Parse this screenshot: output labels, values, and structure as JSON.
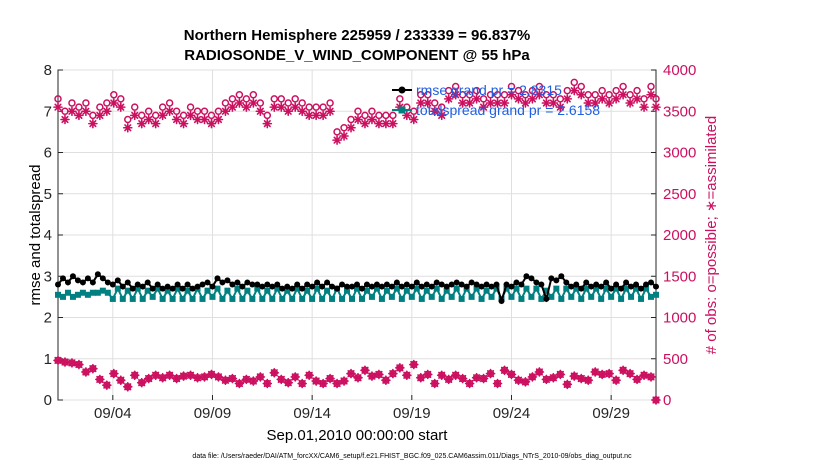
{
  "chart_data": {
    "type": "line",
    "title_line1": "Northern Hemisphere 225959 / 233339 = 96.837%",
    "title_line2": "RADIOSONDE_V_WIND_COMPONENT @ 55 hPa",
    "xlabel": "Sep.01,2010 00:00:00 start",
    "ylabel_left": "rmse and totalspread",
    "ylabel_right": "# of obs: o=possible; ∗=assimilated",
    "footer": "data file: /Users/raeder/DAI/ATM_forcXX/CAM6_setup/f.e21.FHIST_BGC.f09_025.CAM6assim.011/Diags_NTrS_2010-09/obs_diag_output.nc",
    "xlim": [
      0,
      30
    ],
    "ylim_left": [
      0,
      8
    ],
    "ylim_right": [
      0,
      4000
    ],
    "x_ticks": [
      {
        "x": 2.75,
        "label": "09/04"
      },
      {
        "x": 7.75,
        "label": "09/09"
      },
      {
        "x": 12.75,
        "label": "09/14"
      },
      {
        "x": 17.75,
        "label": "09/19"
      },
      {
        "x": 22.75,
        "label": "09/24"
      },
      {
        "x": 27.75,
        "label": "09/29"
      }
    ],
    "y_ticks_left": [
      "0",
      "1",
      "2",
      "3",
      "4",
      "5",
      "6",
      "7",
      "8"
    ],
    "y_ticks_right": [
      "0",
      "500",
      "1000",
      "1500",
      "2000",
      "2500",
      "3000",
      "3500",
      "4000"
    ],
    "legend": [
      {
        "label": "rmse grand pr = 2.8315",
        "color": "#000000"
      },
      {
        "label": "totalspread grand pr = 2.6158",
        "color": "#008080"
      }
    ],
    "colors": {
      "rmse": "#000000",
      "spread": "#008080",
      "obs": "#cc1060",
      "legend_text": "#1f5fe0"
    },
    "series": {
      "x": [
        0.0,
        0.25,
        0.5,
        0.75,
        1.0,
        1.25,
        1.5,
        1.75,
        2.0,
        2.25,
        2.5,
        2.75,
        3.0,
        3.25,
        3.5,
        3.75,
        4.0,
        4.25,
        4.5,
        4.75,
        5.0,
        5.25,
        5.5,
        5.75,
        6.0,
        6.25,
        6.5,
        6.75,
        7.0,
        7.25,
        7.5,
        7.75,
        8.0,
        8.25,
        8.5,
        8.75,
        9.0,
        9.25,
        9.5,
        9.75,
        10.0,
        10.25,
        10.5,
        10.75,
        11.0,
        11.25,
        11.5,
        11.75,
        12.0,
        12.25,
        12.5,
        12.75,
        13.0,
        13.25,
        13.5,
        13.75,
        14.0,
        14.25,
        14.5,
        14.75,
        15.0,
        15.25,
        15.5,
        15.75,
        16.0,
        16.25,
        16.5,
        16.75,
        17.0,
        17.25,
        17.5,
        17.75,
        18.0,
        18.25,
        18.5,
        18.75,
        19.0,
        19.25,
        19.5,
        19.75,
        20.0,
        20.25,
        20.5,
        20.75,
        21.0,
        21.25,
        21.5,
        21.75,
        22.0,
        22.25,
        22.5,
        22.75,
        23.0,
        23.25,
        23.5,
        23.75,
        24.0,
        24.25,
        24.5,
        24.75,
        25.0,
        25.25,
        25.5,
        25.75,
        26.0,
        26.25,
        26.5,
        26.75,
        27.0,
        27.25,
        27.5,
        27.75,
        28.0,
        28.25,
        28.5,
        28.75,
        29.0,
        29.25,
        29.5,
        29.75,
        30.0
      ],
      "rmse": [
        2.8,
        2.95,
        2.85,
        3.0,
        2.9,
        2.85,
        2.95,
        2.85,
        3.05,
        2.95,
        2.85,
        2.8,
        2.9,
        2.75,
        2.85,
        2.7,
        2.8,
        2.75,
        2.85,
        2.7,
        2.8,
        2.7,
        2.75,
        2.7,
        2.8,
        2.7,
        2.8,
        2.7,
        2.75,
        2.8,
        2.85,
        2.75,
        2.95,
        2.85,
        2.9,
        2.8,
        2.85,
        2.75,
        2.85,
        2.8,
        2.8,
        2.75,
        2.8,
        2.75,
        2.8,
        2.7,
        2.75,
        2.7,
        2.8,
        2.7,
        2.8,
        2.75,
        2.85,
        2.75,
        2.85,
        2.75,
        2.7,
        2.8,
        2.75,
        2.75,
        2.8,
        2.7,
        2.8,
        2.75,
        2.8,
        2.75,
        2.8,
        2.75,
        2.85,
        2.75,
        2.8,
        2.75,
        2.85,
        2.75,
        2.8,
        2.75,
        2.85,
        2.8,
        2.75,
        2.8,
        2.85,
        2.8,
        2.75,
        2.85,
        2.8,
        2.75,
        2.8,
        2.75,
        2.8,
        2.4,
        2.8,
        2.75,
        2.85,
        2.8,
        3.0,
        2.95,
        2.85,
        2.8,
        2.45,
        2.95,
        2.9,
        3.0,
        2.85,
        2.75,
        2.8,
        2.7,
        2.85,
        2.75,
        2.8,
        2.75,
        2.85,
        2.7,
        2.8,
        2.7,
        2.85,
        2.75,
        2.8,
        2.7,
        2.8,
        2.85,
        2.75
      ],
      "spread": [
        2.55,
        2.5,
        2.6,
        2.5,
        2.55,
        2.6,
        2.55,
        2.6,
        2.6,
        2.65,
        2.6,
        2.45,
        2.7,
        2.45,
        2.65,
        2.45,
        2.7,
        2.45,
        2.65,
        2.5,
        2.7,
        2.45,
        2.65,
        2.45,
        2.7,
        2.45,
        2.65,
        2.45,
        2.7,
        2.45,
        2.65,
        2.5,
        2.7,
        2.45,
        2.65,
        2.45,
        2.7,
        2.45,
        2.65,
        2.45,
        2.7,
        2.45,
        2.65,
        2.45,
        2.7,
        2.45,
        2.65,
        2.45,
        2.7,
        2.45,
        2.65,
        2.45,
        2.7,
        2.45,
        2.65,
        2.45,
        2.7,
        2.45,
        2.65,
        2.45,
        2.7,
        2.45,
        2.65,
        2.5,
        2.7,
        2.45,
        2.65,
        2.5,
        2.7,
        2.45,
        2.65,
        2.5,
        2.7,
        2.45,
        2.65,
        2.5,
        2.7,
        2.45,
        2.65,
        2.5,
        2.7,
        2.45,
        2.7,
        2.5,
        2.7,
        2.45,
        2.65,
        2.5,
        2.7,
        2.45,
        2.7,
        2.5,
        2.7,
        2.45,
        2.7,
        2.5,
        2.7,
        2.45,
        2.65,
        2.5,
        2.7,
        2.45,
        2.7,
        2.5,
        2.7,
        2.45,
        2.7,
        2.5,
        2.7,
        2.45,
        2.7,
        2.5,
        2.7,
        2.45,
        2.7,
        2.5,
        2.7,
        2.45,
        2.7,
        2.5,
        2.55
      ],
      "obs_possible": [
        3650,
        3500,
        3600,
        3550,
        3600,
        3450,
        3550,
        3600,
        3700,
        3650,
        3400,
        3550,
        3450,
        3500,
        3450,
        3550,
        3600,
        3500,
        3450,
        3550,
        3500,
        3500,
        3450,
        3500,
        3600,
        3650,
        3700,
        3650,
        3700,
        3600,
        3450,
        3650,
        3650,
        3600,
        3650,
        3600,
        3550,
        3550,
        3550,
        3600,
        3250,
        3300,
        3400,
        3500,
        3450,
        3500,
        3450,
        3450,
        3450,
        3650,
        3550,
        3500,
        3700,
        3700,
        3600,
        3550,
        3750,
        3800,
        3700,
        3700,
        3750,
        3650,
        3700,
        3700,
        3700,
        3800,
        3750,
        3700,
        3750,
        3800,
        3700,
        3700,
        3650,
        3750,
        3850,
        3800,
        3700,
        3700,
        3750,
        3700,
        3750,
        3800,
        3700,
        3750,
        3650,
        3800,
        3650
      ],
      "obs_assimilated": [
        3550,
        3400,
        3500,
        3450,
        3500,
        3350,
        3450,
        3500,
        3600,
        3550,
        3300,
        3450,
        3350,
        3400,
        3350,
        3450,
        3500,
        3400,
        3350,
        3450,
        3400,
        3400,
        3350,
        3400,
        3500,
        3550,
        3600,
        3550,
        3600,
        3500,
        3350,
        3550,
        3550,
        3500,
        3550,
        3500,
        3450,
        3450,
        3450,
        3500,
        3150,
        3200,
        3300,
        3400,
        3350,
        3400,
        3350,
        3350,
        3350,
        3550,
        3450,
        3400,
        3600,
        3600,
        3500,
        3450,
        3650,
        3700,
        3600,
        3600,
        3650,
        3550,
        3600,
        3600,
        3600,
        3700,
        3650,
        3600,
        3650,
        3700,
        3600,
        3600,
        3550,
        3650,
        3750,
        3700,
        3600,
        3600,
        3650,
        3600,
        3650,
        3700,
        3600,
        3650,
        3550,
        3700,
        3550
      ],
      "obs_x": [
        0.0,
        0.35,
        0.7,
        1.05,
        1.4,
        1.75,
        2.1,
        2.45,
        2.8,
        3.15,
        3.5,
        3.85,
        4.2,
        4.55,
        4.9,
        5.25,
        5.6,
        5.95,
        6.3,
        6.65,
        7.0,
        7.35,
        7.7,
        8.05,
        8.4,
        8.75,
        9.1,
        9.45,
        9.8,
        10.15,
        10.5,
        10.85,
        11.2,
        11.55,
        11.9,
        12.25,
        12.6,
        12.95,
        13.3,
        13.65,
        14.0,
        14.35,
        14.7,
        15.05,
        15.4,
        15.75,
        16.1,
        16.45,
        16.8,
        17.15,
        17.5,
        17.85,
        18.2,
        18.55,
        18.9,
        19.25,
        19.6,
        19.95,
        20.3,
        20.65,
        21.0,
        21.35,
        21.7,
        22.05,
        22.4,
        22.75,
        23.1,
        23.45,
        23.8,
        24.15,
        24.5,
        24.85,
        25.2,
        25.55,
        25.9,
        26.25,
        26.6,
        26.95,
        27.3,
        27.65,
        28.0,
        28.35,
        28.7,
        29.05,
        29.4,
        29.75,
        30.0
      ],
      "obs_low": [
        480,
        460,
        450,
        430,
        340,
        380,
        250,
        180,
        320,
        240,
        160,
        300,
        210,
        260,
        300,
        270,
        300,
        260,
        290,
        300,
        270,
        280,
        310,
        280,
        240,
        260,
        200,
        250,
        230,
        280,
        200,
        330,
        250,
        210,
        280,
        200,
        300,
        230,
        200,
        260,
        200,
        230,
        320,
        270,
        360,
        290,
        310,
        240,
        320,
        390,
        300,
        430,
        270,
        310,
        200,
        300,
        250,
        300,
        260,
        200,
        270,
        260,
        320,
        200,
        360,
        310,
        240,
        220,
        280,
        340,
        250,
        270,
        310,
        190,
        290,
        260,
        240,
        340,
        310,
        320,
        240,
        360,
        320,
        250,
        300,
        280,
        0
      ]
    }
  }
}
